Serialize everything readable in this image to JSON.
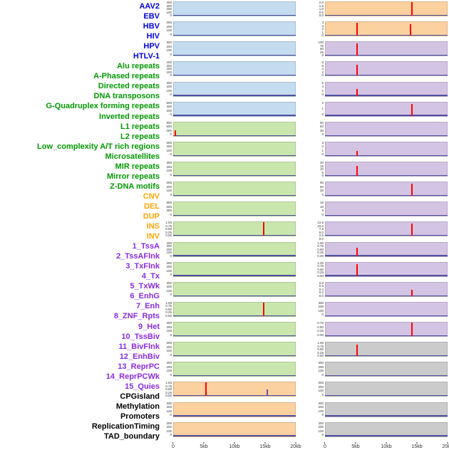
{
  "chart_data": {
    "type": "line",
    "description_visible_text_only": true,
    "x_axis": {
      "ticks": [
        "0",
        "5kb",
        "10kb",
        "15kb",
        "20kb"
      ],
      "range_kb": [
        0,
        20
      ]
    },
    "colors": {
      "virus": {
        "label": "#0000dd",
        "bg": "#c4dcf0"
      },
      "repeat": {
        "label": "#009900",
        "bg": "#c9e7ad"
      },
      "sv": {
        "label": "#ffa500",
        "bg": "#fcd1a0"
      },
      "chromhmm": {
        "label": "#8a2be2",
        "bg": "#d4c4e4"
      },
      "feature": {
        "label": "#000000",
        "bg": "#cbcbcb"
      },
      "spike": "#ff0000",
      "baseline": "#5050a0",
      "axis_text": "#333333"
    },
    "labels": [
      {
        "text": "AAV2",
        "cat": "virus"
      },
      {
        "text": "EBV",
        "cat": "virus"
      },
      {
        "text": "HBV",
        "cat": "virus"
      },
      {
        "text": "HIV",
        "cat": "virus"
      },
      {
        "text": "HPV",
        "cat": "virus"
      },
      {
        "text": "HTLV-1",
        "cat": "virus"
      },
      {
        "text": "Alu repeats",
        "cat": "repeat"
      },
      {
        "text": "A-Phased repeats",
        "cat": "repeat"
      },
      {
        "text": "Directed repeats",
        "cat": "repeat"
      },
      {
        "text": "DNA transposons",
        "cat": "repeat"
      },
      {
        "text": "G-Quadruplex forming repeats",
        "cat": "repeat"
      },
      {
        "text": "Inverted repeats",
        "cat": "repeat"
      },
      {
        "text": "L1 repeats",
        "cat": "repeat"
      },
      {
        "text": "L2 repeats",
        "cat": "repeat"
      },
      {
        "text": "Low_complexity A/T rich regions",
        "cat": "repeat"
      },
      {
        "text": "Microsatellites",
        "cat": "repeat"
      },
      {
        "text": "MIR repeats",
        "cat": "repeat"
      },
      {
        "text": "Mirror repeats",
        "cat": "repeat"
      },
      {
        "text": "Z-DNA motifs",
        "cat": "repeat"
      },
      {
        "text": "CNV",
        "cat": "sv"
      },
      {
        "text": "DEL",
        "cat": "sv"
      },
      {
        "text": "DUP",
        "cat": "sv"
      },
      {
        "text": "INS",
        "cat": "sv"
      },
      {
        "text": "INV",
        "cat": "sv"
      },
      {
        "text": "1_TssA",
        "cat": "chromhmm"
      },
      {
        "text": "2_TssAFlnk",
        "cat": "chromhmm"
      },
      {
        "text": "3_TxFlnk",
        "cat": "chromhmm"
      },
      {
        "text": "4_Tx",
        "cat": "chromhmm"
      },
      {
        "text": "5_TxWk",
        "cat": "chromhmm"
      },
      {
        "text": "6_EnhG",
        "cat": "chromhmm"
      },
      {
        "text": "7_Enh",
        "cat": "chromhmm"
      },
      {
        "text": "8_ZNF_Rpts",
        "cat": "chromhmm"
      },
      {
        "text": "9_Het",
        "cat": "chromhmm"
      },
      {
        "text": "10_TssBiv",
        "cat": "chromhmm"
      },
      {
        "text": "11_BivFlnk",
        "cat": "chromhmm"
      },
      {
        "text": "12_EnhBiv",
        "cat": "chromhmm"
      },
      {
        "text": "13_ReprPC",
        "cat": "chromhmm"
      },
      {
        "text": "14_ReprPCWk",
        "cat": "chromhmm"
      },
      {
        "text": "15_Quies",
        "cat": "chromhmm"
      },
      {
        "text": "CPGisland",
        "cat": "feature"
      },
      {
        "text": "Methylation",
        "cat": "feature"
      },
      {
        "text": "Promoters",
        "cat": "feature"
      },
      {
        "text": "ReplicationTiming",
        "cat": "feature"
      },
      {
        "text": "TAD_boundary",
        "cat": "feature"
      }
    ],
    "columns": [
      {
        "side": "left",
        "panels": [
          {
            "label": "AAV2",
            "cat": "virus",
            "yticks": [
              "400",
              "300",
              "200",
              "100",
              "0"
            ],
            "spikes": []
          },
          {
            "label": "EBV",
            "cat": "virus",
            "yticks": [
              "300",
              "200",
              "100",
              "0"
            ],
            "spikes": []
          },
          {
            "label": "HBV",
            "cat": "virus",
            "yticks": [
              "300",
              "200",
              "100",
              "0"
            ],
            "spikes": []
          },
          {
            "label": "HIV",
            "cat": "virus",
            "yticks": [
              "400",
              "300",
              "200",
              "100",
              "0"
            ],
            "spikes": []
          },
          {
            "label": "HPV",
            "cat": "virus",
            "yticks": [
              "300",
              "200",
              "100",
              "0"
            ],
            "spikes": []
          },
          {
            "label": "HTLV-1",
            "cat": "virus",
            "yticks": [
              "600",
              "400",
              "200",
              "0"
            ],
            "spikes": []
          },
          {
            "label": "Alu repeats",
            "cat": "repeat",
            "yticks": [
              "900",
              "600",
              "300",
              "0"
            ],
            "spikes": [
              {
                "x_kb": 0.4,
                "h": 0.35
              }
            ]
          },
          {
            "label": "A-Phased repeats",
            "cat": "repeat",
            "yticks": [
              "300",
              "200",
              "100",
              "0"
            ],
            "spikes": []
          },
          {
            "label": "Directed repeats",
            "cat": "repeat",
            "yticks": [
              "300",
              "200",
              "100",
              "0"
            ],
            "spikes": []
          },
          {
            "label": "DNA transposons",
            "cat": "repeat",
            "yticks": [
              "300",
              "200",
              "100",
              "0"
            ],
            "spikes": []
          },
          {
            "label": "G-Quadruplex forming repeats",
            "cat": "repeat",
            "yticks": [
              "900",
              "600",
              "300",
              "0"
            ],
            "spikes": []
          },
          {
            "label": "Inverted repeats",
            "cat": "repeat",
            "yticks": [
              "1.00",
              "0.75",
              "0.50",
              "0.25",
              "0.00"
            ],
            "spikes": [
              {
                "x_kb": 14.8,
                "h": 0.92
              }
            ]
          },
          {
            "label": "L1 repeats",
            "cat": "repeat",
            "yticks": [
              "400",
              "300",
              "200",
              "100",
              "0"
            ],
            "spikes": []
          },
          {
            "label": "L2 repeats",
            "cat": "repeat",
            "yticks": [
              "300",
              "200",
              "100",
              "0"
            ],
            "spikes": []
          },
          {
            "label": "Low_complexity A/T rich regions",
            "cat": "repeat",
            "yticks": [
              "300",
              "200",
              "100",
              "0"
            ],
            "spikes": []
          },
          {
            "label": "Microsatellites",
            "cat": "repeat",
            "yticks": [
              "1.00",
              "0.75",
              "0.50",
              "0.25",
              "0.00"
            ],
            "spikes": [
              {
                "x_kb": 14.8,
                "h": 0.92
              }
            ]
          },
          {
            "label": "MIR repeats",
            "cat": "repeat",
            "yticks": [
              "300",
              "200",
              "100",
              "0"
            ],
            "spikes": []
          },
          {
            "label": "Mirror repeats",
            "cat": "repeat",
            "yticks": [
              "300",
              "200",
              "100",
              "0"
            ],
            "spikes": []
          },
          {
            "label": "Z-DNA motifs",
            "cat": "repeat",
            "yticks": [
              "300",
              "200",
              "100",
              "0"
            ],
            "spikes": []
          },
          {
            "label": "CNV",
            "cat": "sv",
            "yticks": [
              "1.00",
              "0.75",
              "0.50",
              "0.25",
              "0.00"
            ],
            "spikes": [
              {
                "x_kb": 5.4,
                "h": 0.92
              },
              {
                "x_kb": 15.4,
                "h": 0.45,
                "color": "#6a51a3"
              }
            ]
          },
          {
            "label": "DEL",
            "cat": "sv",
            "yticks": [
              "300",
              "200",
              "100",
              "0"
            ],
            "spikes": []
          },
          {
            "label": "DUP",
            "cat": "sv",
            "yticks": [
              "300",
              "200",
              "100",
              "0"
            ],
            "spikes": []
          }
        ]
      },
      {
        "side": "right",
        "panels": [
          {
            "label": "INS",
            "cat": "sv",
            "yticks": [
              "2.0",
              "1.5",
              "1.0",
              "0.5",
              "0.0"
            ],
            "spikes": [
              {
                "x_kb": 14.2,
                "h": 0.9
              }
            ]
          },
          {
            "label": "INV",
            "cat": "sv",
            "yticks": [
              "4",
              "3",
              "2",
              "1",
              "0"
            ],
            "spikes": [
              {
                "x_kb": 5.2,
                "h": 0.85
              },
              {
                "x_kb": 14.0,
                "h": 0.75
              }
            ]
          },
          {
            "label": "1_TssA",
            "cat": "chromhmm",
            "yticks": [
              "100",
              "75",
              "50",
              "25",
              "0"
            ],
            "spikes": [
              {
                "x_kb": 5.2,
                "h": 0.8
              }
            ]
          },
          {
            "label": "2_TssAFlnk",
            "cat": "chromhmm",
            "yticks": [
              "8",
              "6",
              "4",
              "2",
              "0"
            ],
            "spikes": [
              {
                "x_kb": 5.2,
                "h": 0.72
              }
            ]
          },
          {
            "label": "3_TxFlnk",
            "cat": "chromhmm",
            "yticks": [
              "6",
              "4",
              "2",
              "0"
            ],
            "spikes": [
              {
                "x_kb": 5.2,
                "h": 0.45
              }
            ]
          },
          {
            "label": "4_Tx",
            "cat": "chromhmm",
            "yticks": [
              "2",
              "1",
              "0"
            ],
            "spikes": [
              {
                "x_kb": 14.2,
                "h": 0.8
              }
            ]
          },
          {
            "label": "5_TxWk",
            "cat": "chromhmm",
            "yticks": [
              "90",
              "60",
              "30",
              "0"
            ],
            "spikes": []
          },
          {
            "label": "6_EnhG",
            "cat": "chromhmm",
            "yticks": [
              "3",
              "2",
              "1",
              "0"
            ],
            "spikes": [
              {
                "x_kb": 5.2,
                "h": 0.35
              }
            ]
          },
          {
            "label": "7_Enh",
            "cat": "chromhmm",
            "yticks": [
              "20",
              "15",
              "10",
              "5",
              "0"
            ],
            "spikes": [
              {
                "x_kb": 5.2,
                "h": 0.65
              }
            ]
          },
          {
            "label": "8_ZNF_Rpts",
            "cat": "chromhmm",
            "yticks": [
              "90",
              "60",
              "30",
              "0"
            ],
            "spikes": [
              {
                "x_kb": 14.2,
                "h": 0.8
              }
            ]
          },
          {
            "label": "9_Het",
            "cat": "chromhmm",
            "yticks": [
              "15",
              "10",
              "5",
              "0"
            ],
            "spikes": []
          },
          {
            "label": "10_TssBiv",
            "cat": "chromhmm",
            "yticks": [
              "12.5",
              "10.0",
              "7.5",
              "5.0",
              "2.5",
              "0.0"
            ],
            "spikes": [
              {
                "x_kb": 14.2,
                "h": 0.85
              }
            ]
          },
          {
            "label": "11_BivFlnk",
            "cat": "chromhmm",
            "yticks": [
              "1.00",
              "0.75",
              "0.50",
              "0.25",
              "0.00"
            ],
            "spikes": [
              {
                "x_kb": 5.2,
                "h": 0.55
              }
            ]
          },
          {
            "label": "12_EnhBiv",
            "cat": "chromhmm",
            "yticks": [
              "1.00",
              "0.75",
              "0.50",
              "0.25",
              "0.00"
            ],
            "spikes": [
              {
                "x_kb": 5.2,
                "h": 0.8
              }
            ]
          },
          {
            "label": "13_ReprPC",
            "cat": "chromhmm",
            "yticks": [
              "0.8",
              "0.6",
              "0.4",
              "0.2",
              "0.0"
            ],
            "spikes": [
              {
                "x_kb": 14.2,
                "h": 0.4
              }
            ]
          },
          {
            "label": "14_ReprPCWk",
            "cat": "chromhmm",
            "yticks": [
              "300",
              "200",
              "100",
              "0"
            ],
            "spikes": []
          },
          {
            "label": "15_Quies",
            "cat": "chromhmm",
            "yticks": [
              "0.75",
              "0.50",
              "0.25",
              "0.00"
            ],
            "spikes": [
              {
                "x_kb": 14.2,
                "h": 0.9
              }
            ]
          },
          {
            "label": "CPGisland",
            "cat": "feature",
            "yticks": [
              "1.00",
              "0.75",
              "0.50",
              "0.25",
              "0.00"
            ],
            "spikes": [
              {
                "x_kb": 5.2,
                "h": 0.75
              }
            ]
          },
          {
            "label": "Methylation",
            "cat": "feature",
            "yticks": [
              "300",
              "200",
              "100",
              "0"
            ],
            "spikes": []
          },
          {
            "label": "Promoters",
            "cat": "feature",
            "yticks": [
              "300",
              "200",
              "100",
              "0"
            ],
            "spikes": []
          },
          {
            "label": "ReplicationTiming",
            "cat": "feature",
            "yticks": [
              "300",
              "200",
              "100",
              "0"
            ],
            "spikes": []
          },
          {
            "label": "TAD_boundary",
            "cat": "feature",
            "yticks": [
              "300",
              "200",
              "100",
              "0"
            ],
            "spikes": []
          }
        ]
      }
    ]
  }
}
